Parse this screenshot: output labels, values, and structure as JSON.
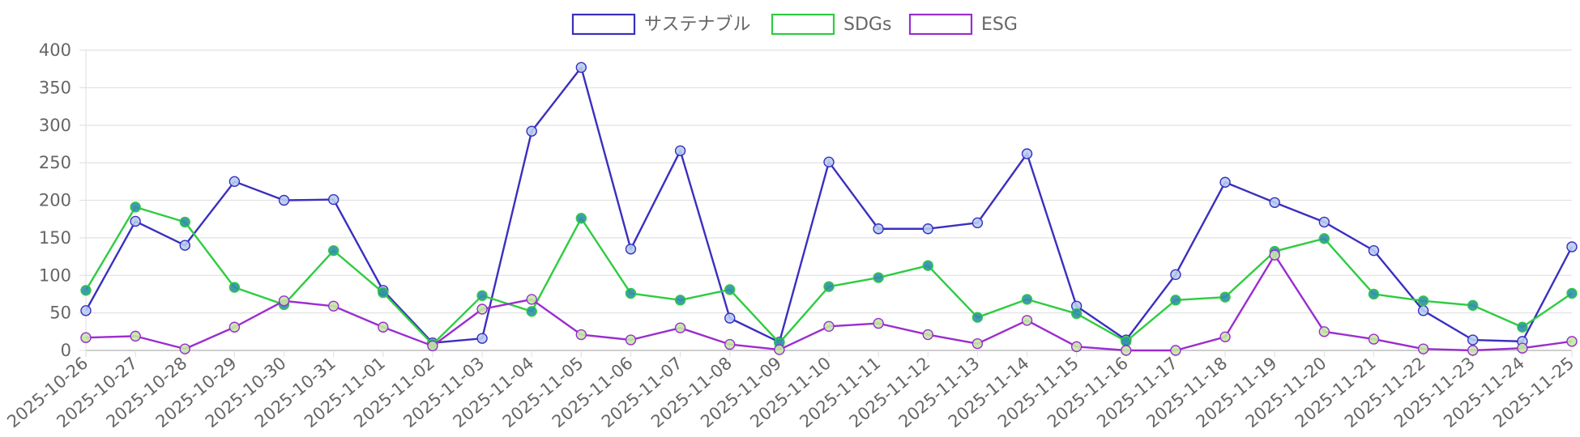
{
  "chart_data": {
    "type": "line",
    "ylim": [
      0,
      400
    ],
    "yticks": [
      0,
      50,
      100,
      150,
      200,
      250,
      300,
      350,
      400
    ],
    "grid": true,
    "legend_position": "top-center",
    "x": [
      "2025-10-26",
      "2025-10-27",
      "2025-10-28",
      "2025-10-29",
      "2025-10-30",
      "2025-10-31",
      "2025-11-01",
      "2025-11-02",
      "2025-11-03",
      "2025-11-04",
      "2025-11-05",
      "2025-11-06",
      "2025-11-07",
      "2025-11-08",
      "2025-11-09",
      "2025-11-10",
      "2025-11-11",
      "2025-11-12",
      "2025-11-13",
      "2025-11-14",
      "2025-11-15",
      "2025-11-16",
      "2025-11-17",
      "2025-11-18",
      "2025-11-19",
      "2025-11-20",
      "2025-11-21",
      "2025-11-22",
      "2025-11-23",
      "2025-11-24",
      "2025-11-25"
    ],
    "series": [
      {
        "name": "サステナブル",
        "color": "#3a2fbf",
        "marker_fill": "#b7cdef",
        "values": [
          53,
          172,
          140,
          225,
          200,
          201,
          80,
          10,
          16,
          292,
          377,
          135,
          266,
          43,
          11,
          251,
          162,
          162,
          170,
          262,
          59,
          14,
          101,
          224,
          197,
          171,
          133,
          53,
          14,
          12,
          138
        ]
      },
      {
        "name": "SDGs",
        "color": "#2ecc40",
        "marker_fill": "#2f8fa8",
        "values": [
          80,
          191,
          171,
          84,
          61,
          133,
          77,
          8,
          73,
          52,
          176,
          76,
          67,
          81,
          10,
          85,
          97,
          113,
          44,
          68,
          49,
          12,
          67,
          71,
          132,
          149,
          75,
          66,
          60,
          31,
          76
        ]
      },
      {
        "name": "ESG",
        "color": "#9b2dcf",
        "marker_fill": "#c3e8a5",
        "values": [
          17,
          19,
          2,
          31,
          66,
          59,
          31,
          6,
          55,
          68,
          21,
          14,
          30,
          8,
          1,
          32,
          36,
          21,
          9,
          40,
          5,
          0,
          0,
          18,
          127,
          25,
          15,
          2,
          0,
          3,
          12
        ]
      }
    ]
  }
}
